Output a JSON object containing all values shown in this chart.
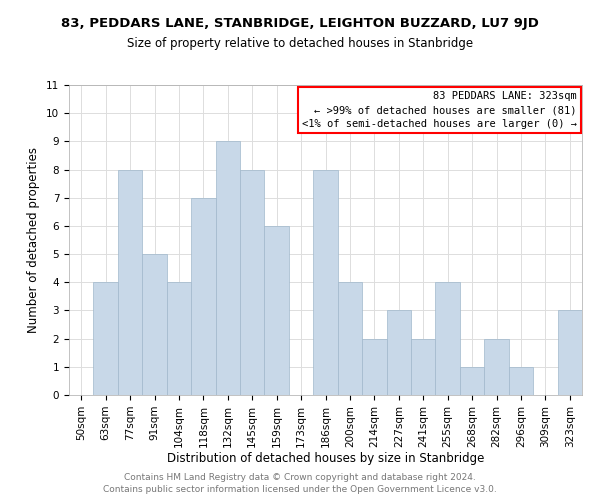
{
  "title": "83, PEDDARS LANE, STANBRIDGE, LEIGHTON BUZZARD, LU7 9JD",
  "subtitle": "Size of property relative to detached houses in Stanbridge",
  "xlabel": "Distribution of detached houses by size in Stanbridge",
  "ylabel": "Number of detached properties",
  "bar_color": "#c8d8e8",
  "bar_edgecolor": "#a0b8cc",
  "categories": [
    "50sqm",
    "63sqm",
    "77sqm",
    "91sqm",
    "104sqm",
    "118sqm",
    "132sqm",
    "145sqm",
    "159sqm",
    "173sqm",
    "186sqm",
    "200sqm",
    "214sqm",
    "227sqm",
    "241sqm",
    "255sqm",
    "268sqm",
    "282sqm",
    "296sqm",
    "309sqm",
    "323sqm"
  ],
  "values": [
    0,
    4,
    8,
    5,
    4,
    7,
    9,
    8,
    6,
    0,
    8,
    4,
    2,
    3,
    2,
    4,
    1,
    2,
    1,
    0,
    3
  ],
  "ylim": [
    0,
    11
  ],
  "yticks": [
    0,
    1,
    2,
    3,
    4,
    5,
    6,
    7,
    8,
    9,
    10,
    11
  ],
  "legend_title": "83 PEDDARS LANE: 323sqm",
  "legend_line1": "← >99% of detached houses are smaller (81)",
  "legend_line2": "<1% of semi-detached houses are larger (0) →",
  "legend_box_color": "white",
  "legend_box_edgecolor": "red",
  "footer1": "Contains HM Land Registry data © Crown copyright and database right 2024.",
  "footer2": "Contains public sector information licensed under the Open Government Licence v3.0.",
  "grid_color": "#dddddd",
  "title_fontsize": 9.5,
  "subtitle_fontsize": 8.5,
  "axis_label_fontsize": 8.5,
  "tick_fontsize": 7.5,
  "footer_fontsize": 6.5,
  "legend_fontsize": 7.5
}
